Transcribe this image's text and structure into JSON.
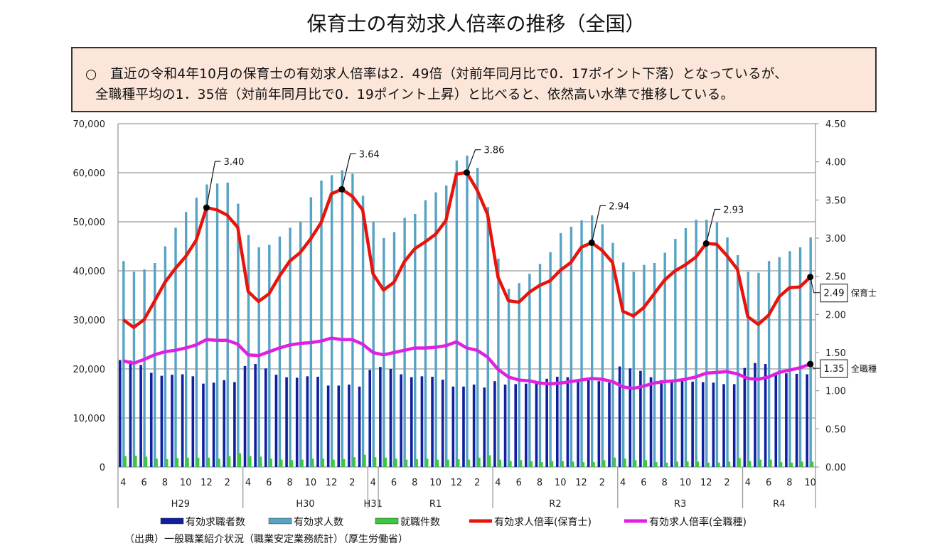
{
  "title": "保育士の有効求人倍率の推移（全国）",
  "summary": {
    "line1": "○　直近の令和4年10月の保育士の有効求人倍率は2．49倍（対前年同月比で0．17ポイント下落）となっているが、",
    "line2": "全職種平均の1．35倍（対前年同月比で0．19ポイント上昇）と比べると、依然高い水準で推移している。"
  },
  "source": "（出典）一般職業紹介状況（職業安定業務統計）（厚生労働省）",
  "chart_data": {
    "type": "bar+line",
    "left_axis": {
      "range": [
        0,
        70000
      ],
      "tick_labels": [
        "0",
        "10,000",
        "20,000",
        "30,000",
        "40,000",
        "50,000",
        "60,000",
        "70,000"
      ]
    },
    "right_axis": {
      "range": [
        0,
        4.5
      ],
      "tick_labels": [
        "0.00",
        "0.50",
        "1.00",
        "1.50",
        "2.00",
        "2.50",
        "3.00",
        "3.50",
        "4.00",
        "4.50"
      ]
    },
    "grid": true,
    "months": [
      4,
      5,
      6,
      7,
      8,
      9,
      10,
      11,
      12,
      1,
      2,
      3,
      4,
      5,
      6,
      7,
      8,
      9,
      10,
      11,
      12,
      1,
      2,
      3,
      4,
      5,
      6,
      7,
      8,
      9,
      10,
      11,
      12,
      1,
      2,
      3,
      4,
      5,
      6,
      7,
      8,
      9,
      10,
      11,
      12,
      1,
      2,
      3,
      4,
      5,
      6,
      7,
      8,
      9,
      10,
      11,
      12,
      1,
      2,
      3,
      4,
      5,
      6,
      7,
      8,
      9,
      10
    ],
    "groups": [
      {
        "label": "H29",
        "count": 12
      },
      {
        "label": "H30",
        "count": 12
      },
      {
        "label": "H31",
        "count": 1
      },
      {
        "label": "R1",
        "count": 11
      },
      {
        "label": "R2",
        "count": 12
      },
      {
        "label": "R3",
        "count": 12
      },
      {
        "label": "R4",
        "count": 7
      }
    ],
    "series": [
      {
        "name": "有効求職者数",
        "kind": "bar",
        "axis": "left",
        "color": "#0f1fa0",
        "values": [
          21800,
          21700,
          20800,
          19200,
          18600,
          18800,
          18900,
          18500,
          17000,
          17200,
          17700,
          17300,
          20600,
          21000,
          20100,
          18800,
          18300,
          18200,
          18500,
          18400,
          16600,
          16600,
          16800,
          16400,
          19800,
          20400,
          20000,
          18900,
          18300,
          18500,
          18400,
          17800,
          16400,
          16400,
          16800,
          16200,
          17500,
          16800,
          16900,
          17000,
          17300,
          18000,
          18400,
          18300,
          17600,
          17800,
          17500,
          17200,
          20500,
          20100,
          19600,
          18300,
          17700,
          17800,
          17700,
          17400,
          17300,
          17200,
          16900,
          16900,
          20200,
          21200,
          21000,
          19200,
          19100,
          19000,
          18900
        ]
      },
      {
        "name": "有効求人数",
        "kind": "bar",
        "axis": "left",
        "color": "#57a3c3",
        "values": [
          42000,
          39800,
          40300,
          41600,
          45000,
          48800,
          52000,
          54900,
          57600,
          57800,
          58000,
          53700,
          47300,
          44800,
          45300,
          47000,
          48800,
          50000,
          55000,
          58400,
          59500,
          60500,
          59800,
          55300,
          50000,
          46700,
          47900,
          50800,
          51600,
          54400,
          56000,
          57400,
          62500,
          63500,
          61000,
          53000,
          42500,
          36300,
          37500,
          39400,
          41400,
          43800,
          47700,
          49000,
          50300,
          51300,
          49500,
          45700,
          41700,
          39800,
          41200,
          41600,
          43700,
          46500,
          48700,
          50400,
          50400,
          49900,
          46800,
          43200,
          39800,
          39600,
          42000,
          42800,
          44000,
          44800,
          46800
        ]
      },
      {
        "name": "就職件数",
        "kind": "bar",
        "axis": "left",
        "color": "#3cc83c",
        "values": [
          2200,
          2300,
          2100,
          1700,
          1600,
          1800,
          1900,
          1900,
          1900,
          1700,
          2200,
          2800,
          2200,
          2100,
          1700,
          1500,
          1400,
          1500,
          1700,
          1700,
          1500,
          1600,
          2000,
          2500,
          2000,
          1900,
          1700,
          1500,
          1600,
          1700,
          1500,
          1500,
          1600,
          1500,
          1900,
          2400,
          1500,
          1200,
          1400,
          1200,
          1000,
          1200,
          1200,
          1100,
          1000,
          1000,
          1400,
          1900,
          1700,
          1400,
          1400,
          1000,
          900,
          1100,
          1100,
          1100,
          900,
          900,
          1100,
          1800,
          1200,
          1500,
          1500,
          1000,
          900,
          1100,
          1100
        ]
      },
      {
        "name": "有効求人倍率(保育士)",
        "kind": "line",
        "axis": "right",
        "color": "#e8140c",
        "values": [
          1.93,
          1.83,
          1.93,
          2.17,
          2.42,
          2.6,
          2.76,
          2.97,
          3.4,
          3.37,
          3.3,
          3.14,
          2.3,
          2.17,
          2.27,
          2.5,
          2.7,
          2.81,
          2.99,
          3.2,
          3.58,
          3.64,
          3.55,
          3.37,
          2.53,
          2.32,
          2.42,
          2.69,
          2.86,
          2.95,
          3.05,
          3.23,
          3.84,
          3.86,
          3.63,
          3.31,
          2.49,
          2.18,
          2.16,
          2.29,
          2.38,
          2.44,
          2.58,
          2.68,
          2.88,
          2.94,
          2.84,
          2.68,
          2.04,
          1.98,
          2.09,
          2.27,
          2.45,
          2.57,
          2.65,
          2.75,
          2.93,
          2.92,
          2.77,
          2.59,
          1.97,
          1.87,
          1.99,
          2.23,
          2.35,
          2.36,
          2.49
        ]
      },
      {
        "name": "有効求人倍率(全職種)",
        "kind": "line",
        "axis": "right",
        "color": "#e020e0",
        "values": [
          1.39,
          1.36,
          1.41,
          1.47,
          1.51,
          1.53,
          1.56,
          1.6,
          1.67,
          1.66,
          1.66,
          1.61,
          1.47,
          1.46,
          1.51,
          1.56,
          1.6,
          1.62,
          1.63,
          1.65,
          1.69,
          1.67,
          1.67,
          1.61,
          1.5,
          1.47,
          1.5,
          1.53,
          1.56,
          1.56,
          1.57,
          1.59,
          1.64,
          1.56,
          1.53,
          1.44,
          1.28,
          1.18,
          1.14,
          1.13,
          1.1,
          1.09,
          1.1,
          1.12,
          1.14,
          1.16,
          1.15,
          1.12,
          1.05,
          1.03,
          1.06,
          1.1,
          1.12,
          1.13,
          1.15,
          1.18,
          1.23,
          1.24,
          1.25,
          1.22,
          1.16,
          1.15,
          1.18,
          1.24,
          1.27,
          1.3,
          1.35
        ]
      }
    ],
    "annotations": [
      {
        "index": 8,
        "label": "3.40"
      },
      {
        "index": 21,
        "label": "3.64"
      },
      {
        "index": 33,
        "label": "3.86"
      },
      {
        "index": 45,
        "label": "2.94"
      },
      {
        "index": 56,
        "label": "2.93"
      }
    ],
    "end_labels": [
      {
        "series": 3,
        "value": "2.49",
        "name": "保育士"
      },
      {
        "series": 4,
        "value": "1.35",
        "name": "全職種"
      }
    ],
    "legend_position": "bottom"
  }
}
